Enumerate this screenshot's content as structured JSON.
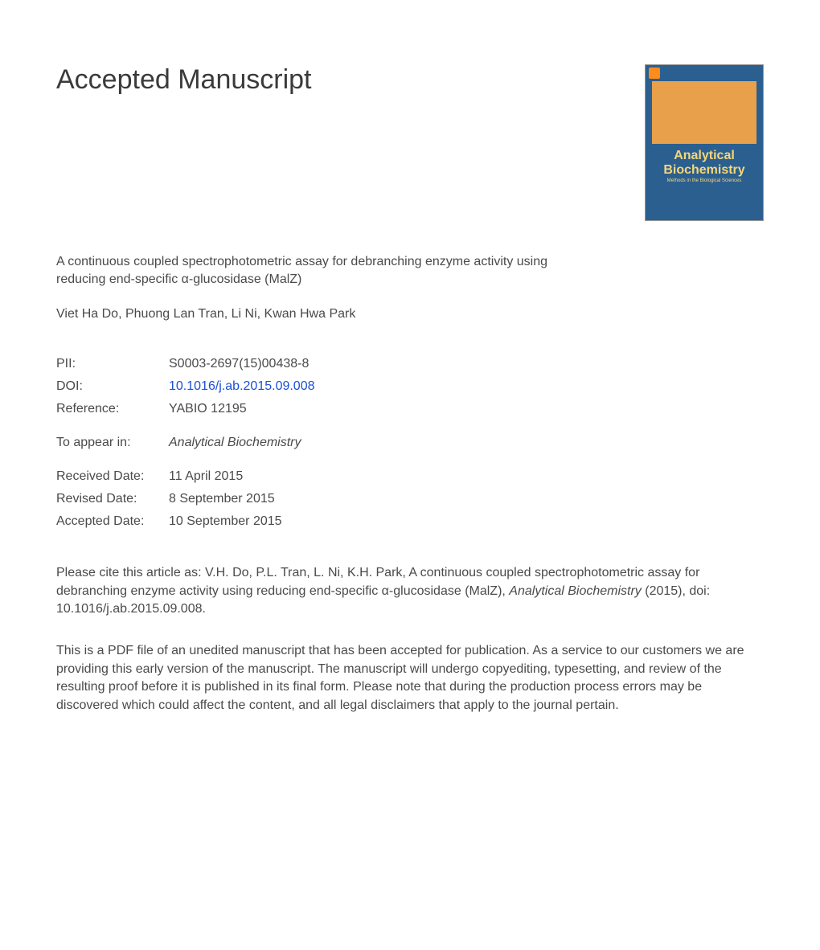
{
  "heading": "Accepted Manuscript",
  "article_title": "A continuous coupled spectrophotometric assay for debranching enzyme activity using reducing end-specific α-glucosidase (MalZ)",
  "authors": "Viet Ha Do, Phuong Lan Tran, Li Ni, Kwan Hwa Park",
  "meta": {
    "pii_label": "PII:",
    "pii_value": "S0003-2697(15)00438-8",
    "doi_label": "DOI:",
    "doi_value": "10.1016/j.ab.2015.09.008",
    "reference_label": "Reference:",
    "reference_value": "YABIO 12195",
    "appear_label": "To appear in:",
    "appear_value": "Analytical Biochemistry",
    "received_label": "Received Date:",
    "received_value": "11 April 2015",
    "revised_label": "Revised Date:",
    "revised_value": "8 September 2015",
    "accepted_label": "Accepted Date:",
    "accepted_value": "10 September 2015"
  },
  "citation_prefix": "Please cite this article as: V.H. Do, P.L. Tran, L. Ni, K.H. Park, A continuous coupled spectrophotometric assay for debranching enzyme activity using reducing end-specific α-glucosidase (MalZ), ",
  "citation_journal": "Analytical Biochemistry",
  "citation_suffix": " (2015), doi: 10.1016/j.ab.2015.09.008.",
  "disclaimer": "This is a PDF file of an unedited manuscript that has been accepted for publication. As a service to our customers we are providing this early version of the manuscript. The manuscript will undergo copyediting, typesetting, and review of the resulting proof before it is published in its final form. Please note that during the production process errors may be discovered which could affect the content, and all legal disclaimers that apply to the journal pertain.",
  "cover": {
    "title_line1": "Analytical",
    "title_line2": "Biochemistry",
    "subtitle": "Methods in the Biological Sciences",
    "colors": {
      "background": "#2b5f8f",
      "orange_band": "#e8a04a",
      "title_text": "#f5d67a",
      "logo": "#ff8c1a"
    }
  },
  "colors": {
    "text": "#4a4a4a",
    "heading": "#3a3a3a",
    "link": "#1a4fd6",
    "page_bg": "#ffffff"
  },
  "typography": {
    "heading_fontsize": 34,
    "body_fontsize": 16,
    "font_family": "Arial"
  }
}
